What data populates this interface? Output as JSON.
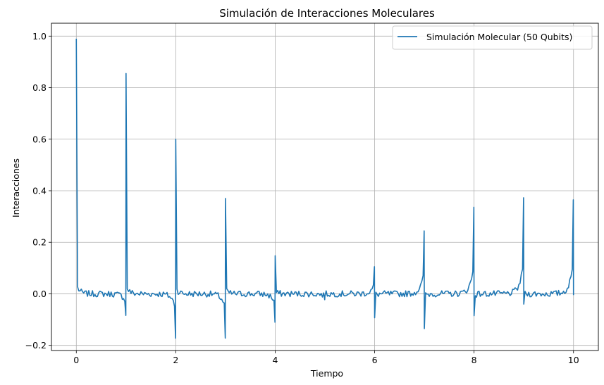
{
  "chart_data": {
    "type": "line",
    "title": "Simulación de Interacciones Moleculares",
    "xlabel": "Tiempo",
    "ylabel": "Interacciones",
    "xlim": [
      -0.5,
      10.5
    ],
    "ylim": [
      -0.22,
      1.05
    ],
    "xticks": [
      0,
      2,
      4,
      6,
      8,
      10
    ],
    "yticks": [
      -0.2,
      0.0,
      0.2,
      0.4,
      0.6,
      0.8,
      1.0
    ],
    "xtick_labels": [
      "0",
      "2",
      "4",
      "6",
      "8",
      "10"
    ],
    "ytick_labels": [
      "−0.2",
      "0.0",
      "0.2",
      "0.4",
      "0.6",
      "0.8",
      "1.0"
    ],
    "grid": true,
    "legend_position": "top-right",
    "series": [
      {
        "name": "Simulación Molecular (50 Qubits)",
        "color": "#1f77b4",
        "peaks": [
          {
            "t": 0,
            "pre": -0.005,
            "peak": 0.99
          },
          {
            "t": 1,
            "pre": -0.085,
            "peak": 0.855
          },
          {
            "t": 2,
            "pre": -0.17,
            "peak": 0.6
          },
          {
            "t": 3,
            "pre": -0.172,
            "peak": 0.37
          },
          {
            "t": 4,
            "pre": -0.11,
            "peak": 0.148
          },
          {
            "t": 5,
            "pre": -0.02,
            "peak": -0.01
          },
          {
            "t": 6,
            "pre": 0.105,
            "peak": -0.093
          },
          {
            "t": 7,
            "pre": 0.245,
            "peak": -0.135
          },
          {
            "t": 8,
            "pre": 0.338,
            "peak": -0.085
          },
          {
            "t": 9,
            "pre": 0.375,
            "peak": -0.04
          },
          {
            "t": 10,
            "pre": 0.368,
            "peak": -0.005
          }
        ],
        "noise_amplitude": 0.012
      }
    ]
  }
}
